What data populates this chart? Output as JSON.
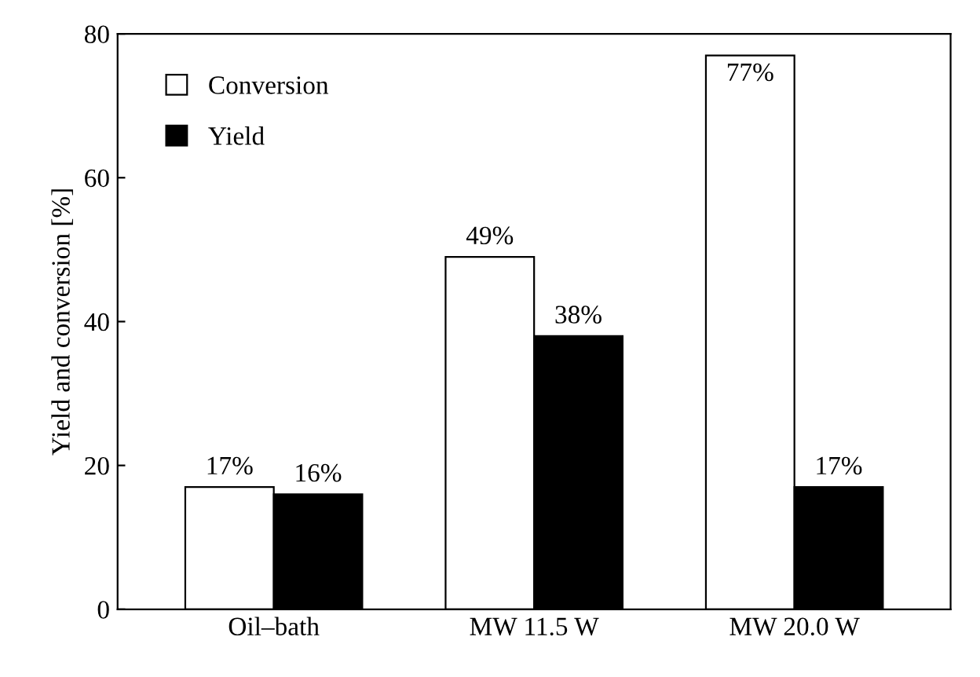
{
  "chart_data": {
    "type": "bar",
    "ylabel": "Yield and conversion [%]",
    "categories": [
      "Oil–bath",
      "MW 11.5 W",
      "MW 20.0 W"
    ],
    "series": [
      {
        "name": "Conversion",
        "color": "#ffffff",
        "values": [
          17,
          49,
          77
        ],
        "value_labels": [
          "17%",
          "49%",
          "77%"
        ]
      },
      {
        "name": "Yield",
        "color": "#000000",
        "values": [
          16,
          38,
          17
        ],
        "value_labels": [
          "16%",
          "38%",
          "17%"
        ]
      }
    ],
    "ylim": [
      0,
      80
    ],
    "yticks": [
      0,
      20,
      40,
      60,
      80
    ],
    "grid": false,
    "legend": "top left"
  }
}
